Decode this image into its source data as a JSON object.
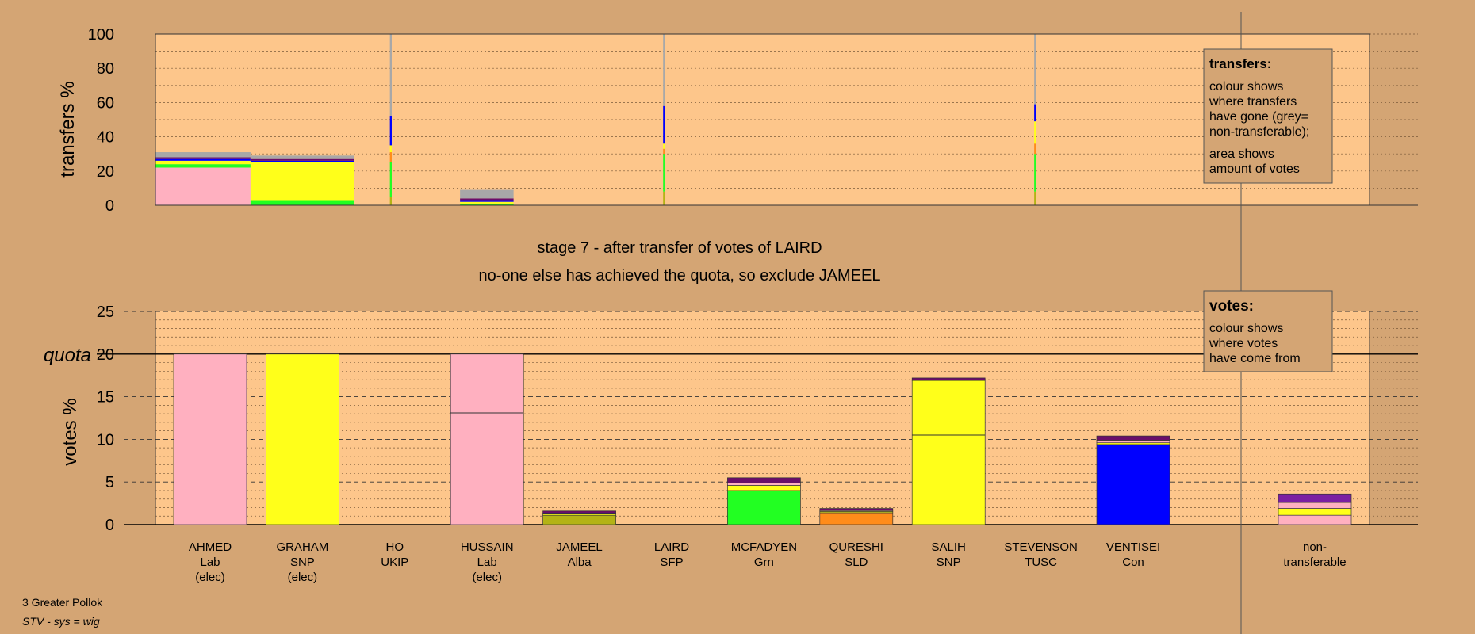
{
  "colors": {
    "page_bg": "#d4a574",
    "plot_bg": "#fdc68b",
    "Lab": "#ffb0c0",
    "SNP": "#ffff1a",
    "Alba": "#b3b315",
    "Grn": "#22ff22",
    "SLD": "#ff8c1a",
    "Con": "#0000ff",
    "TUSC": "#6a0d6a",
    "SFP": "#4a0080",
    "UKIP": "#7b1fa2",
    "nontransferable": "#a8a8a8"
  },
  "header": {
    "stage_text": "stage 7 - after transfer of votes of LAIRD",
    "action_text": "no-one else has achieved the quota, so exclude JAMEEL"
  },
  "footer": {
    "constituency": "3 Greater Pollok",
    "system": "STV - sys = wig"
  },
  "legend_transfers": {
    "title": "transfers:",
    "line1": "colour shows",
    "line2": "where transfers",
    "line3": "have gone (grey=",
    "line4": "non-transferable);",
    "line5": "area shows",
    "line6": "amount of votes"
  },
  "legend_votes": {
    "title": "votes:",
    "line1": "colour shows",
    "line2": "where votes",
    "line3": "have come from"
  },
  "chart_data": [
    {
      "type": "bar",
      "name": "transfers",
      "ylabel": "transfers %",
      "ylim": [
        0,
        100
      ],
      "yticks": [
        "0",
        "20",
        "40",
        "60",
        "80",
        "100"
      ],
      "grid": true,
      "legend_position": "top-right",
      "bars": [
        {
          "x0": 0,
          "x1": 1.03,
          "segments": [
            {
              "party": "Lab",
              "value": 22
            },
            {
              "party": "Grn",
              "value": 2
            },
            {
              "party": "SNP",
              "value": 2
            },
            {
              "party": "Con",
              "value": 1
            },
            {
              "party": "TUSC",
              "value": 1
            },
            {
              "party": "nontransferable",
              "value": 3
            }
          ]
        },
        {
          "x0": 1.03,
          "x1": 2.15,
          "segments": [
            {
              "party": "Grn",
              "value": 3
            },
            {
              "party": "SNP",
              "value": 22
            },
            {
              "party": "Con",
              "value": 1
            },
            {
              "party": "TUSC",
              "value": 1
            },
            {
              "party": "nontransferable",
              "value": 2
            }
          ]
        },
        {
          "x0": 2.54,
          "x1": 2.56,
          "segments": [
            {
              "party": "Alba",
              "value": 5
            },
            {
              "party": "Grn",
              "value": 20
            },
            {
              "party": "SLD",
              "value": 6
            },
            {
              "party": "SNP",
              "value": 4
            },
            {
              "party": "Con",
              "value": 17
            },
            {
              "party": "nontransferable",
              "value": 48
            }
          ]
        },
        {
          "x0": 3.3,
          "x1": 3.88,
          "segments": [
            {
              "party": "Grn",
              "value": 1
            },
            {
              "party": "SNP",
              "value": 1
            },
            {
              "party": "Con",
              "value": 1
            },
            {
              "party": "TUSC",
              "value": 1
            },
            {
              "party": "nontransferable",
              "value": 5
            }
          ]
        },
        {
          "x0": 5.5,
          "x1": 5.52,
          "segments": [
            {
              "party": "Alba",
              "value": 8
            },
            {
              "party": "Grn",
              "value": 22
            },
            {
              "party": "SLD",
              "value": 3
            },
            {
              "party": "SNP",
              "value": 3
            },
            {
              "party": "Con",
              "value": 22
            },
            {
              "party": "nontransferable",
              "value": 42
            }
          ]
        },
        {
          "x0": 9.52,
          "x1": 9.54,
          "segments": [
            {
              "party": "Alba",
              "value": 8
            },
            {
              "party": "Grn",
              "value": 22
            },
            {
              "party": "SLD",
              "value": 6
            },
            {
              "party": "SNP",
              "value": 13
            },
            {
              "party": "Con",
              "value": 10
            },
            {
              "party": "nontransferable",
              "value": 41
            }
          ]
        }
      ]
    },
    {
      "type": "bar",
      "name": "votes",
      "ylabel": "votes %",
      "ylim": [
        0,
        25
      ],
      "yticks": [
        "0",
        "5",
        "10",
        "15",
        "20",
        "25"
      ],
      "quota_label": "quota",
      "quota": 20,
      "grid": true,
      "legend_position": "top-right",
      "candidates": [
        {
          "name": "AHMED",
          "party": "Lab",
          "status": "(elec)",
          "segments": [
            {
              "party": "Lab",
              "value": 20
            }
          ],
          "lines": []
        },
        {
          "name": "GRAHAM",
          "party": "SNP",
          "status": "(elec)",
          "segments": [
            {
              "party": "SNP",
              "value": 20
            }
          ],
          "lines": []
        },
        {
          "name": "HO",
          "party": "UKIP",
          "status": "",
          "segments": [],
          "lines": []
        },
        {
          "name": "HUSSAIN",
          "party": "Lab",
          "status": "(elec)",
          "segments": [
            {
              "party": "Lab",
              "value": 20
            }
          ],
          "lines": [
            13.1
          ]
        },
        {
          "name": "JAMEEL",
          "party": "Alba",
          "status": "",
          "segments": [
            {
              "party": "Alba",
              "value": 1.1
            },
            {
              "party": "SNP",
              "value": 0.15
            },
            {
              "party": "Con",
              "value": 0.1
            },
            {
              "party": "TUSC",
              "value": 0.25
            }
          ],
          "lines": []
        },
        {
          "name": "LAIRD",
          "party": "SFP",
          "status": "",
          "segments": [],
          "lines": []
        },
        {
          "name": "MCFADYEN",
          "party": "Grn",
          "status": "",
          "segments": [
            {
              "party": "Grn",
              "value": 4.0
            },
            {
              "party": "SNP",
              "value": 0.6
            },
            {
              "party": "Lab",
              "value": 0.3
            },
            {
              "party": "TUSC",
              "value": 0.6
            }
          ],
          "lines": []
        },
        {
          "name": "QURESHI",
          "party": "SLD",
          "status": "",
          "segments": [
            {
              "party": "SLD",
              "value": 1.4
            },
            {
              "party": "SNP",
              "value": 0.15
            },
            {
              "party": "Lab",
              "value": 0.1
            },
            {
              "party": "TUSC",
              "value": 0.25
            }
          ],
          "lines": []
        },
        {
          "name": "SALIH",
          "party": "SNP",
          "status": "",
          "segments": [
            {
              "party": "SNP",
              "value": 16.9
            },
            {
              "party": "TUSC",
              "value": 0.3
            }
          ],
          "lines": [
            10.5
          ]
        },
        {
          "name": "STEVENSON",
          "party": "TUSC",
          "status": "",
          "segments": [],
          "lines": []
        },
        {
          "name": "VENTISEI",
          "party": "Con",
          "status": "",
          "segments": [
            {
              "party": "Con",
              "value": 9.4
            },
            {
              "party": "SNP",
              "value": 0.2
            },
            {
              "party": "Lab",
              "value": 0.3
            },
            {
              "party": "TUSC",
              "value": 0.5
            }
          ],
          "lines": []
        }
      ],
      "nontransferable": {
        "name": "non-",
        "name2": "transferable",
        "segments": [
          {
            "party": "Lab",
            "value": 1.1
          },
          {
            "party": "SNP",
            "value": 0.8
          },
          {
            "party": "Lab",
            "value": 0.7
          },
          {
            "party": "UKIP",
            "value": 1.0
          }
        ]
      }
    }
  ]
}
